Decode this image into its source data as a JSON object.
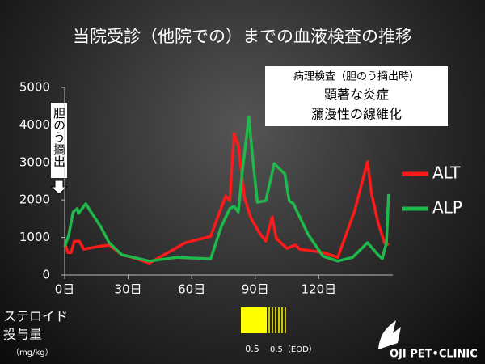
{
  "chart_data": {
    "type": "line",
    "title": "当院受診（他院での）までの血液検査の推移",
    "xlim": [
      0,
      155
    ],
    "xticks": [
      {
        "value": 0,
        "label": "0日"
      },
      {
        "value": 30,
        "label": "30日"
      },
      {
        "value": 60,
        "label": "60日"
      },
      {
        "value": 90,
        "label": "90日"
      },
      {
        "value": 120,
        "label": "120日"
      }
    ],
    "ylim": [
      0,
      5000
    ],
    "yticks": [
      0,
      1000,
      2000,
      3000,
      4000,
      5000
    ],
    "grid": false,
    "legend_position": "right",
    "series": [
      {
        "name": "ALT",
        "color": "#ff1a1a",
        "x": [
          0,
          1.5,
          3,
          4.6,
          6.9,
          9,
          15,
          21,
          27,
          32,
          40,
          57,
          69,
          76,
          78,
          80,
          82,
          85,
          88,
          92,
          95,
          98,
          100,
          105,
          109,
          111,
          122,
          129,
          137,
          143,
          145,
          148,
          151,
          153
        ],
        "values": [
          860,
          600,
          600,
          900,
          900,
          690,
          750,
          800,
          540,
          470,
          320,
          860,
          1030,
          2110,
          1980,
          3770,
          3450,
          2050,
          1510,
          1120,
          900,
          1550,
          970,
          710,
          800,
          690,
          600,
          470,
          1720,
          3020,
          2150,
          1400,
          860,
          800
        ]
      },
      {
        "name": "ALP",
        "color": "#1fb84a",
        "x": [
          0,
          2,
          4,
          6,
          6.5,
          7.6,
          10,
          12,
          17,
          21,
          27,
          40,
          53,
          69,
          74,
          78,
          80,
          82,
          84,
          87,
          89,
          91,
          95,
          99,
          104,
          106,
          108,
          115,
          122,
          129,
          136,
          143,
          148,
          150,
          152,
          153
        ],
        "values": [
          750,
          1080,
          1680,
          1770,
          1640,
          1720,
          1900,
          1720,
          1290,
          860,
          540,
          370,
          470,
          430,
          1290,
          1770,
          1830,
          1680,
          2800,
          4200,
          3020,
          1940,
          1980,
          2970,
          2690,
          1980,
          1900,
          1080,
          500,
          370,
          470,
          860,
          540,
          430,
          860,
          2160
        ]
      }
    ],
    "annotations": {
      "pathology": [
        "病理検査（胆のう摘出時）",
        "顕著な炎症",
        "瀰漫性の線維化"
      ],
      "surgery": "胆のう摘出"
    }
  },
  "steroid": {
    "label_lines": [
      "ステロイド",
      "投与量"
    ],
    "unit": "（mg/kg）",
    "doses": [
      "0.5",
      "0.5（EOD）"
    ]
  },
  "logo": "OJI PET•CLINIC"
}
